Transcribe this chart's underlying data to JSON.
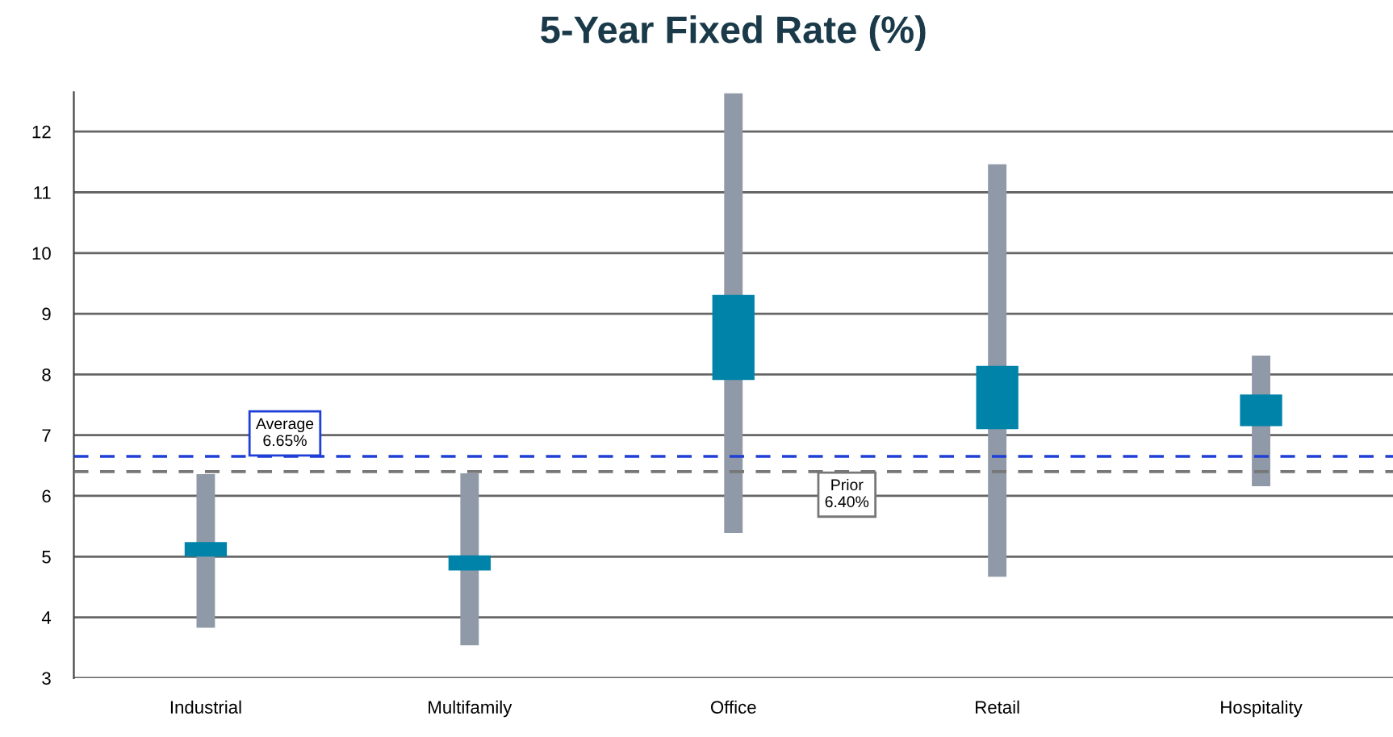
{
  "chart_data": {
    "type": "bar",
    "title": "5-Year Fixed Rate (%)",
    "categories": [
      "Industrial",
      "Multifamily",
      "Office",
      "Retail",
      "Hospitality"
    ],
    "series": [
      {
        "color": "#8f99a8",
        "base": [
          3.83,
          3.54,
          5.39,
          4.67,
          6.16
        ],
        "values": [
          2.53,
          2.83,
          7.24,
          6.79,
          2.15
        ]
      },
      {
        "color": "#0083a9",
        "base": [
          5.0,
          4.77,
          7.91,
          7.1,
          7.15
        ],
        "values": [
          0.24,
          0.25,
          1.4,
          1.04,
          0.52
        ]
      }
    ],
    "ylim": [
      3,
      12.65
    ],
    "yticks": [
      3,
      4,
      5,
      6,
      7,
      8,
      9,
      10,
      11,
      12
    ],
    "grid": "y",
    "legend": false,
    "ref_lines": [
      {
        "axis": "y",
        "value": 6.65,
        "label": "Average\n6.65%",
        "color": "#1f3fd6",
        "line_style": "dashed"
      },
      {
        "axis": "y",
        "value": 6.4,
        "label": "Prior\n6.40%",
        "color": "#777777",
        "line_style": "dashed"
      }
    ]
  }
}
